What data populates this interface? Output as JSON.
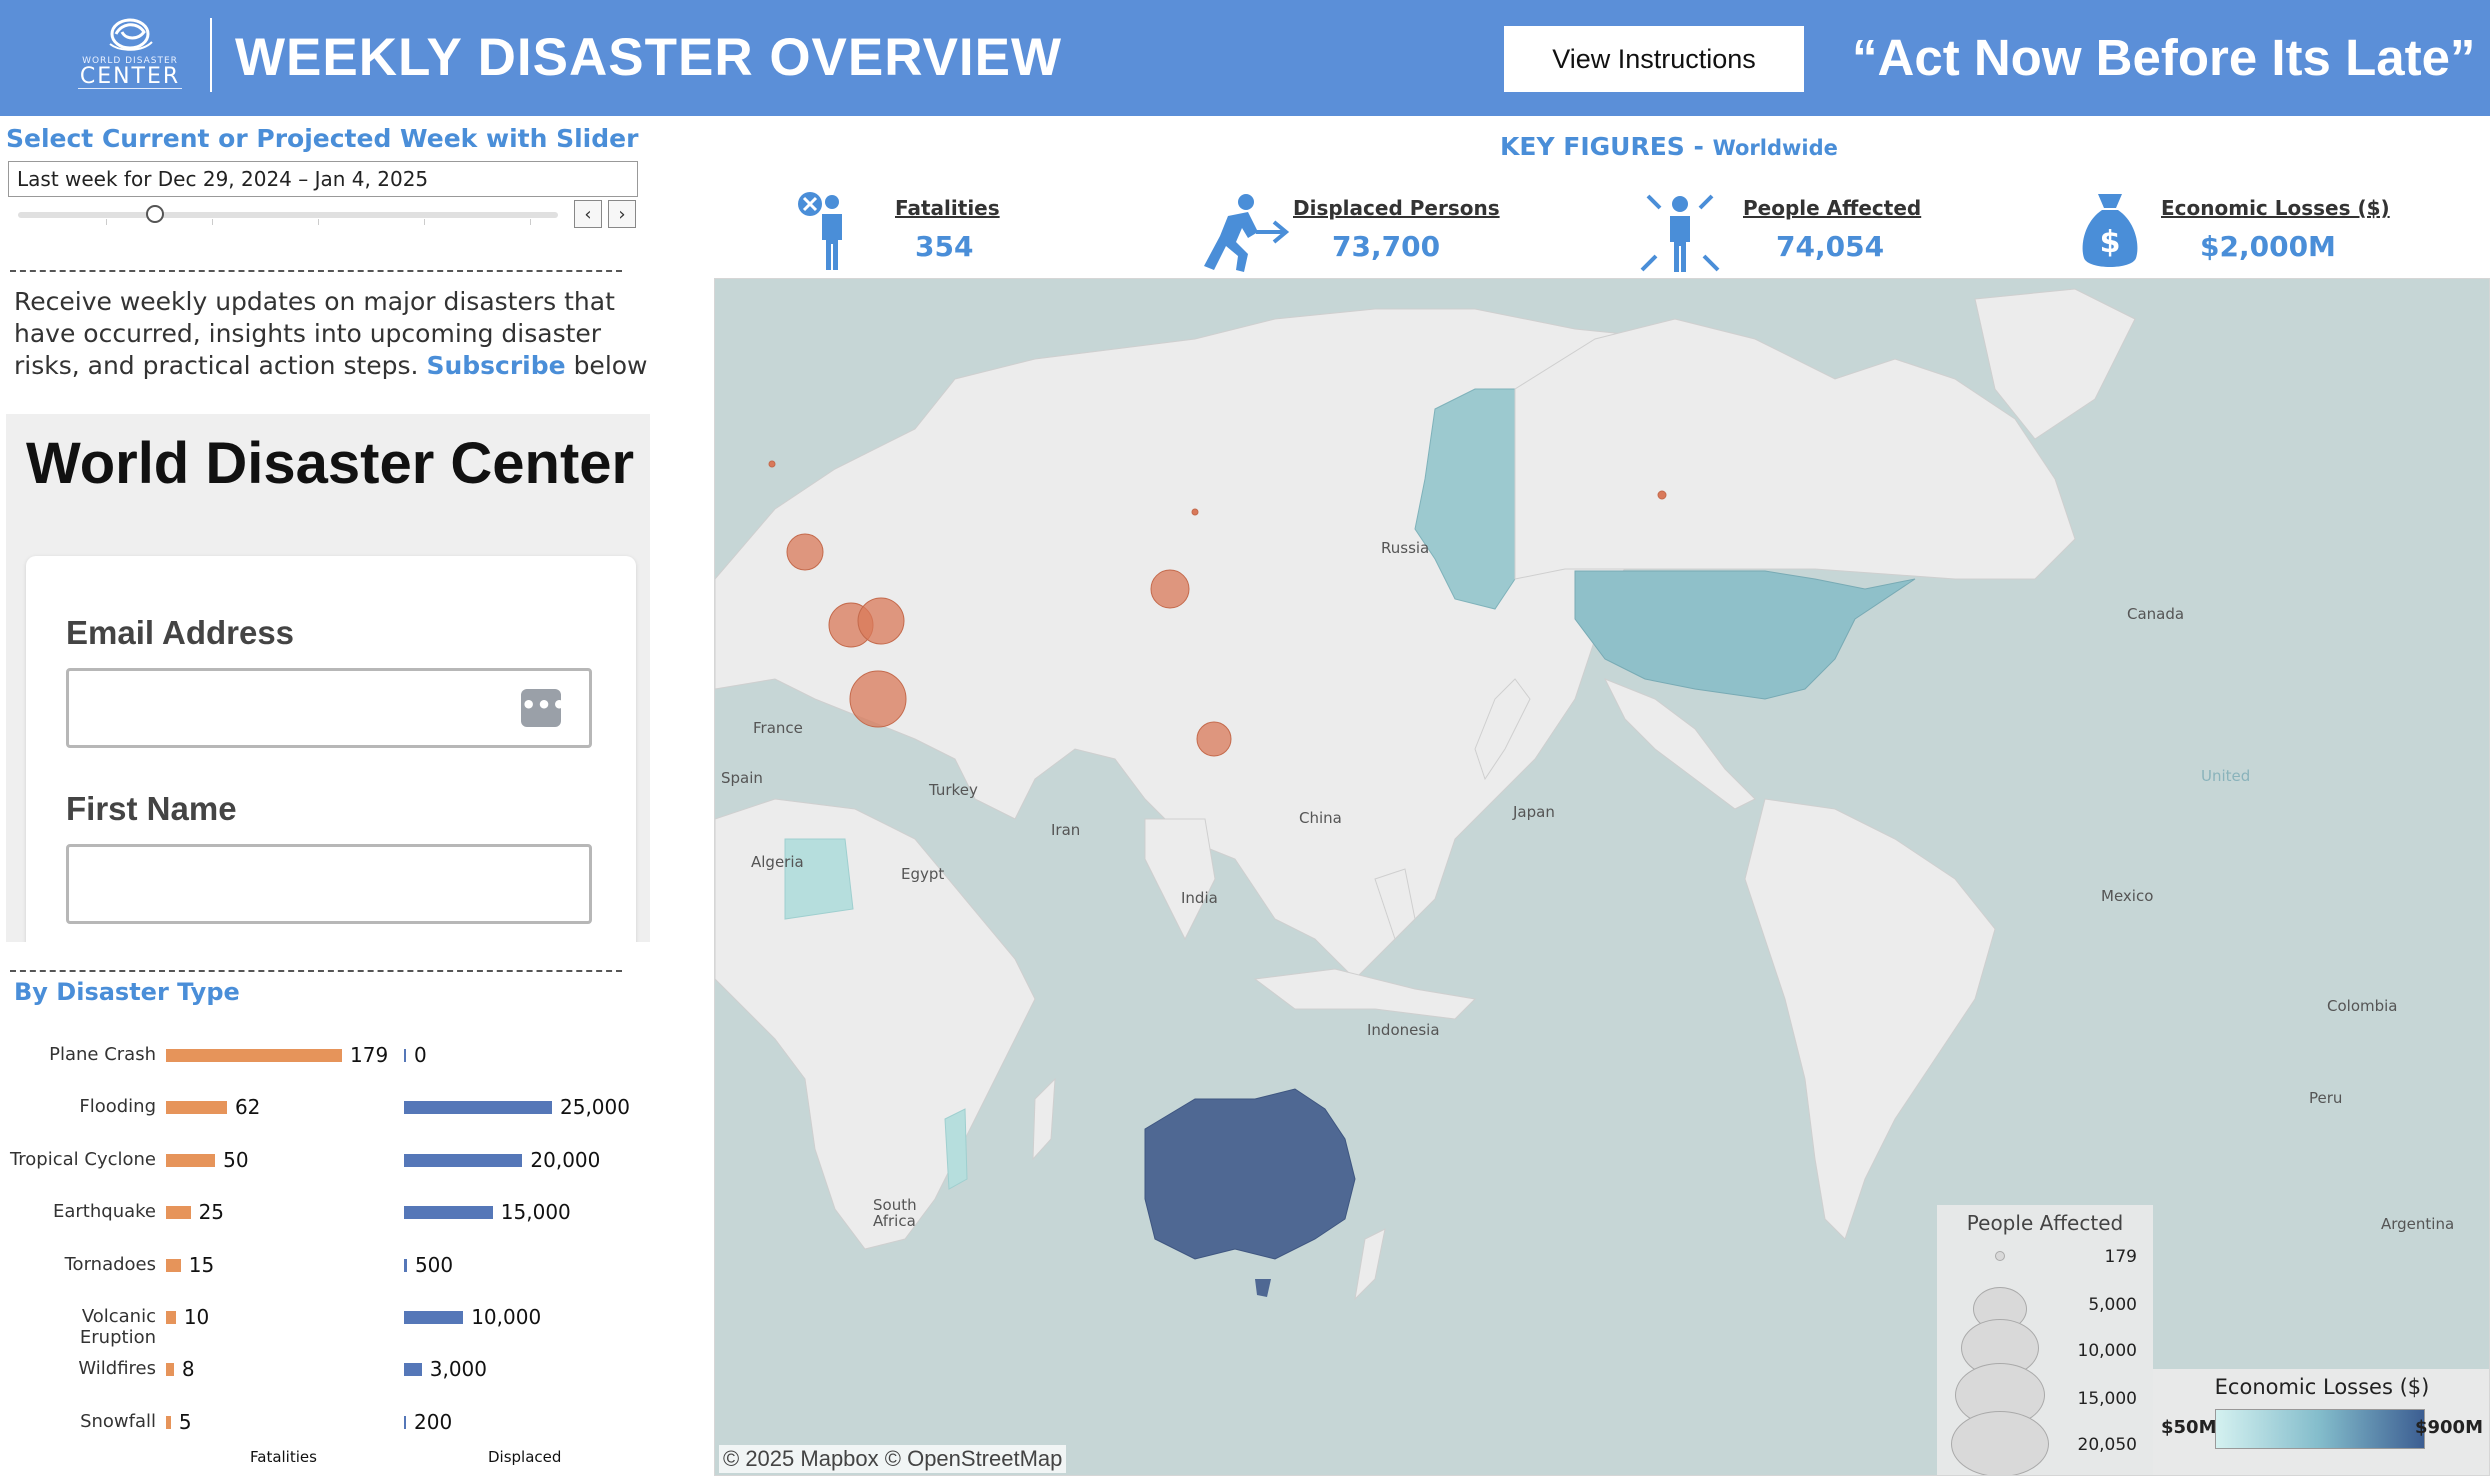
{
  "header": {
    "logo_top": "WORLD DISASTER",
    "logo_bottom": "CENTER",
    "title": "WEEKLY DISASTER OVERVIEW",
    "instructions_label": "View Instructions",
    "slogan": "“Act Now Before Its Late”",
    "background_color": "#5b8fd8"
  },
  "week_filter": {
    "title": "Select Current or Projected Week with Slider",
    "selected": "Last week for Dec 29, 2024 – Jan 4, 2025",
    "prev_icon": "chevron-left-icon",
    "next_icon": "chevron-right-icon"
  },
  "promo": {
    "text_before": "Receive weekly updates on major disasters that have occurred, insights into upcoming disaster risks, and practical action steps.",
    "link": "Subscribe",
    "text_after": "below"
  },
  "form": {
    "title": "World Disaster Center",
    "email_label": "Email Address",
    "first_name_label": "First Name",
    "email_value": "",
    "first_name_value": ""
  },
  "key_figures": {
    "title": "KEY FIGURES -",
    "subtitle": "Worldwide",
    "items": [
      {
        "label": "Fatalities",
        "value": "354",
        "icon": "fatality-person-icon"
      },
      {
        "label": "Displaced Persons",
        "value": "73,700",
        "icon": "displaced-person-icon"
      },
      {
        "label": "People Affected",
        "value": "74,054",
        "icon": "affected-person-icon"
      },
      {
        "label": "Economic Losses ($)",
        "value": "$2,000M",
        "icon": "money-bag-icon"
      }
    ]
  },
  "disaster_types": {
    "title": "By Disaster Type",
    "fatalities_axis": "Fatalities",
    "displaced_axis": "Displaced",
    "fatalities_color": "#e6945a",
    "displaced_color": "#5577b8",
    "rows": [
      {
        "type": "Plane Crash",
        "fatalities": 179,
        "fatalities_label": "179",
        "displaced": 0,
        "displaced_label": "0"
      },
      {
        "type": "Flooding",
        "fatalities": 62,
        "fatalities_label": "62",
        "displaced": 25000,
        "displaced_label": "25,000"
      },
      {
        "type": "Tropical Cyclone",
        "fatalities": 50,
        "fatalities_label": "50",
        "displaced": 20000,
        "displaced_label": "20,000"
      },
      {
        "type": "Earthquake",
        "fatalities": 25,
        "fatalities_label": "25",
        "displaced": 15000,
        "displaced_label": "15,000"
      },
      {
        "type": "Tornadoes",
        "fatalities": 15,
        "fatalities_label": "15",
        "displaced": 500,
        "displaced_label": "500"
      },
      {
        "type": "Volcanic Eruption",
        "fatalities": 10,
        "fatalities_label": "10",
        "displaced": 10000,
        "displaced_label": "10,000"
      },
      {
        "type": "Wildfires",
        "fatalities": 8,
        "fatalities_label": "8",
        "displaced": 3000,
        "displaced_label": "3,000"
      },
      {
        "type": "Snowfall",
        "fatalities": 5,
        "fatalities_label": "5",
        "displaced": 200,
        "displaced_label": "200"
      }
    ]
  },
  "map": {
    "attribution": "© 2025 Mapbox  © OpenStreetMap",
    "labels": [
      "Russia",
      "Canada",
      "France",
      "Spain",
      "Turkey",
      "Iran",
      "China",
      "Japan",
      "Algeria",
      "Egypt",
      "India",
      "Indonesia",
      "South Africa",
      "Mexico",
      "Colombia",
      "Peru",
      "Argentina",
      "United"
    ],
    "bubble_color": "#d9795a",
    "legend_people": {
      "title": "People Affected",
      "values": [
        "179",
        "5,000",
        "10,000",
        "15,000",
        "20,050"
      ]
    },
    "legend_losses": {
      "title": "Economic Losses ($)",
      "min": "$50M",
      "max": "$900M"
    }
  }
}
